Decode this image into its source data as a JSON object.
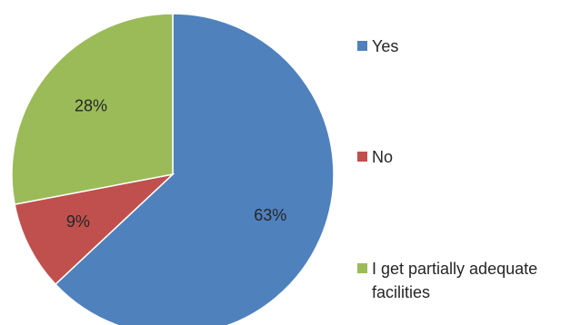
{
  "chart_data": {
    "type": "pie",
    "categories": [
      "Yes",
      "No",
      "I get partially adequate facilities"
    ],
    "values": [
      63,
      9,
      28
    ],
    "labels": [
      "63%",
      "9%",
      "28%"
    ],
    "colors": [
      "#4f81bd",
      "#c0504d",
      "#9bbb59"
    ],
    "start_angle_deg": 0,
    "direction": "clockwise",
    "legend_position": "right"
  }
}
